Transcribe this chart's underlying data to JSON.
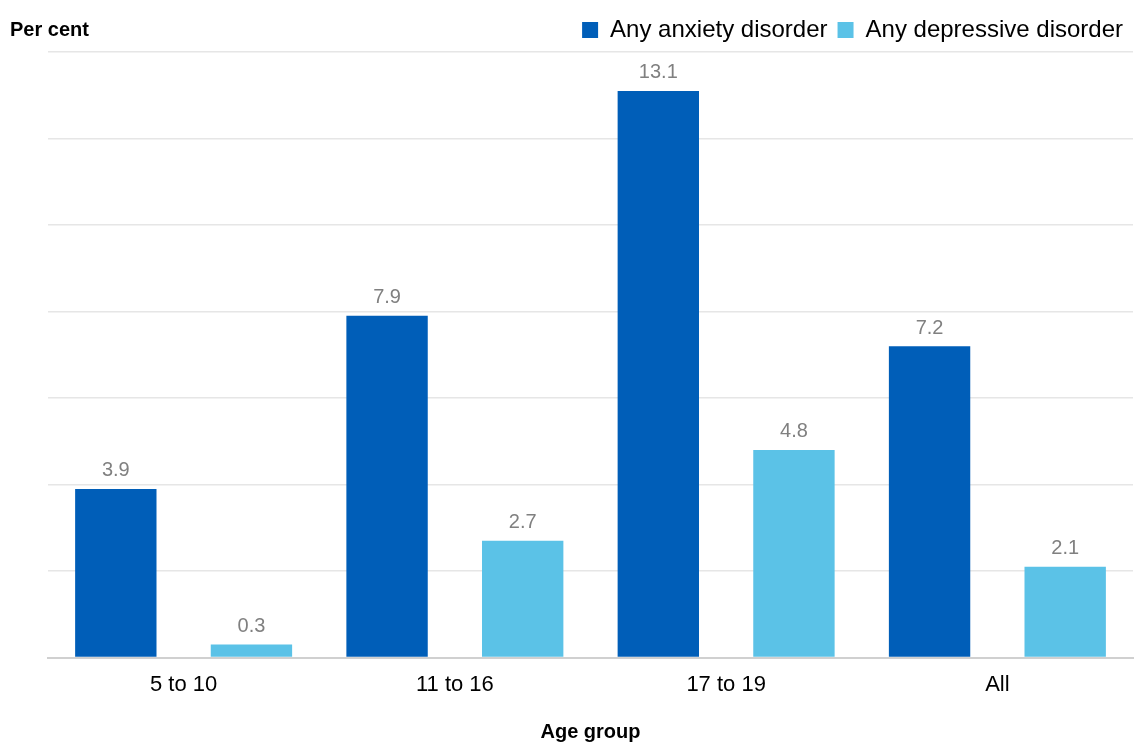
{
  "chart_data": {
    "type": "bar",
    "ylabel": "Per cent",
    "xlabel": "Age group",
    "categories": [
      "5 to 10",
      "11 to 16",
      "17 to 19",
      "All"
    ],
    "series": [
      {
        "name": "Any anxiety disorder",
        "color": "#005eb8",
        "values": [
          3.9,
          7.9,
          13.1,
          7.2
        ]
      },
      {
        "name": "Any depressive disorder",
        "color": "#5bc2e7",
        "values": [
          0.3,
          2.7,
          4.8,
          2.1
        ]
      }
    ],
    "ylim": [
      0,
      14
    ],
    "yticks": [
      {
        "value": 0,
        "label": null
      },
      {
        "value": 2,
        "label": null
      },
      {
        "value": 4,
        "label": null
      },
      {
        "value": 6,
        "label": null
      },
      {
        "value": 8,
        "label": null
      },
      {
        "value": 10,
        "label": null
      },
      {
        "value": 12,
        "label": null
      },
      {
        "value": 14,
        "label": null
      }
    ],
    "tick_labels": "x",
    "grid": "y",
    "legend": "top right",
    "data_labels": true
  }
}
